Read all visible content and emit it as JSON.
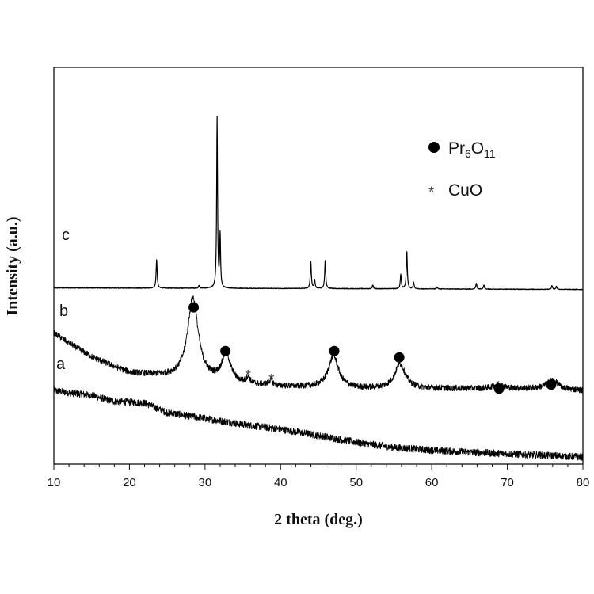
{
  "chart_data": {
    "type": "line",
    "xlabel": "2 theta (deg.)",
    "ylabel": "Intensity (a.u.)",
    "xlim": [
      10,
      80
    ],
    "ylim": [
      0,
      100
    ],
    "xticks": [
      "10",
      "20",
      "30",
      "40",
      "50",
      "60",
      "70",
      "80"
    ],
    "grid": false,
    "legend_position": "top-right",
    "legend": [
      {
        "marker": "filled-circle",
        "label_main": "Pr",
        "sub1": "6",
        "label_mid": "O",
        "sub2": "11"
      },
      {
        "marker": "asterisk",
        "label": "CuO"
      }
    ],
    "series": [
      {
        "name": "a",
        "baseline": [
          [
            10,
            18.5
          ],
          [
            15,
            17.3
          ],
          [
            18,
            15.8
          ],
          [
            20,
            15.6
          ],
          [
            22,
            15.4
          ],
          [
            25,
            13.0
          ],
          [
            30,
            11.5
          ],
          [
            35,
            10.0
          ],
          [
            40,
            8.8
          ],
          [
            45,
            7.2
          ],
          [
            50,
            5.5
          ],
          [
            55,
            4.2
          ],
          [
            60,
            3.5
          ],
          [
            65,
            3.0
          ],
          [
            70,
            2.6
          ],
          [
            75,
            2.2
          ],
          [
            80,
            1.8
          ]
        ],
        "peaks": []
      },
      {
        "name": "b",
        "baseline": [
          [
            10,
            33.0
          ],
          [
            12,
            30.5
          ],
          [
            15,
            27.0
          ],
          [
            18,
            24.5
          ],
          [
            20,
            23.0
          ],
          [
            25,
            22.0
          ],
          [
            30,
            21.0
          ],
          [
            35,
            20.0
          ],
          [
            40,
            19.5
          ],
          [
            45,
            19.3
          ],
          [
            50,
            19.0
          ],
          [
            55,
            19.0
          ],
          [
            60,
            19.0
          ],
          [
            65,
            19.0
          ],
          [
            70,
            19.0
          ],
          [
            75,
            19.0
          ],
          [
            80,
            18.5
          ]
        ],
        "peaks": [
          {
            "x": 28.4,
            "height": 20.5,
            "width": 0.85
          },
          {
            "x": 32.8,
            "height": 7.0,
            "width": 0.7
          },
          {
            "x": 35.7,
            "height": 1.6,
            "width": 0.3
          },
          {
            "x": 38.7,
            "height": 1.4,
            "width": 0.3
          },
          {
            "x": 47.0,
            "height": 8.0,
            "width": 0.8
          },
          {
            "x": 55.8,
            "height": 6.2,
            "width": 0.85
          },
          {
            "x": 68.8,
            "height": 1.2,
            "width": 0.7
          },
          {
            "x": 76.0,
            "height": 2.2,
            "width": 0.9
          }
        ]
      },
      {
        "name": "c",
        "baseline": [
          [
            10,
            44.4
          ],
          [
            30,
            44.3
          ],
          [
            50,
            44.2
          ],
          [
            80,
            44.0
          ]
        ],
        "peaks": [
          {
            "x": 23.6,
            "height": 7.3,
            "width": 0.08
          },
          {
            "x": 29.2,
            "height": 0.7,
            "width": 0.08
          },
          {
            "x": 31.6,
            "height": 43.0,
            "width": 0.07
          },
          {
            "x": 32.0,
            "height": 13.5,
            "width": 0.07
          },
          {
            "x": 44.0,
            "height": 6.8,
            "width": 0.08
          },
          {
            "x": 44.5,
            "height": 2.2,
            "width": 0.08
          },
          {
            "x": 45.9,
            "height": 7.2,
            "width": 0.08
          },
          {
            "x": 52.2,
            "height": 1.0,
            "width": 0.08
          },
          {
            "x": 55.9,
            "height": 3.6,
            "width": 0.08
          },
          {
            "x": 56.7,
            "height": 9.5,
            "width": 0.08
          },
          {
            "x": 57.6,
            "height": 1.7,
            "width": 0.08
          },
          {
            "x": 60.7,
            "height": 0.5,
            "width": 0.08
          },
          {
            "x": 65.9,
            "height": 1.5,
            "width": 0.08
          },
          {
            "x": 66.9,
            "height": 1.1,
            "width": 0.08
          },
          {
            "x": 75.9,
            "height": 1.0,
            "width": 0.08
          },
          {
            "x": 76.5,
            "height": 0.8,
            "width": 0.08
          }
        ]
      }
    ],
    "markers": [
      {
        "type": "circle",
        "x": 28.5,
        "y": 39.5
      },
      {
        "type": "circle",
        "x": 32.7,
        "y": 28.5
      },
      {
        "type": "asterisk",
        "x": 35.7,
        "y": 22.5
      },
      {
        "type": "asterisk",
        "x": 38.8,
        "y": 21.5
      },
      {
        "type": "circle",
        "x": 47.1,
        "y": 28.5
      },
      {
        "type": "circle",
        "x": 55.7,
        "y": 26.9
      },
      {
        "type": "circle",
        "x": 68.9,
        "y": 19.0
      },
      {
        "type": "circle",
        "x": 75.8,
        "y": 20.0
      }
    ]
  }
}
